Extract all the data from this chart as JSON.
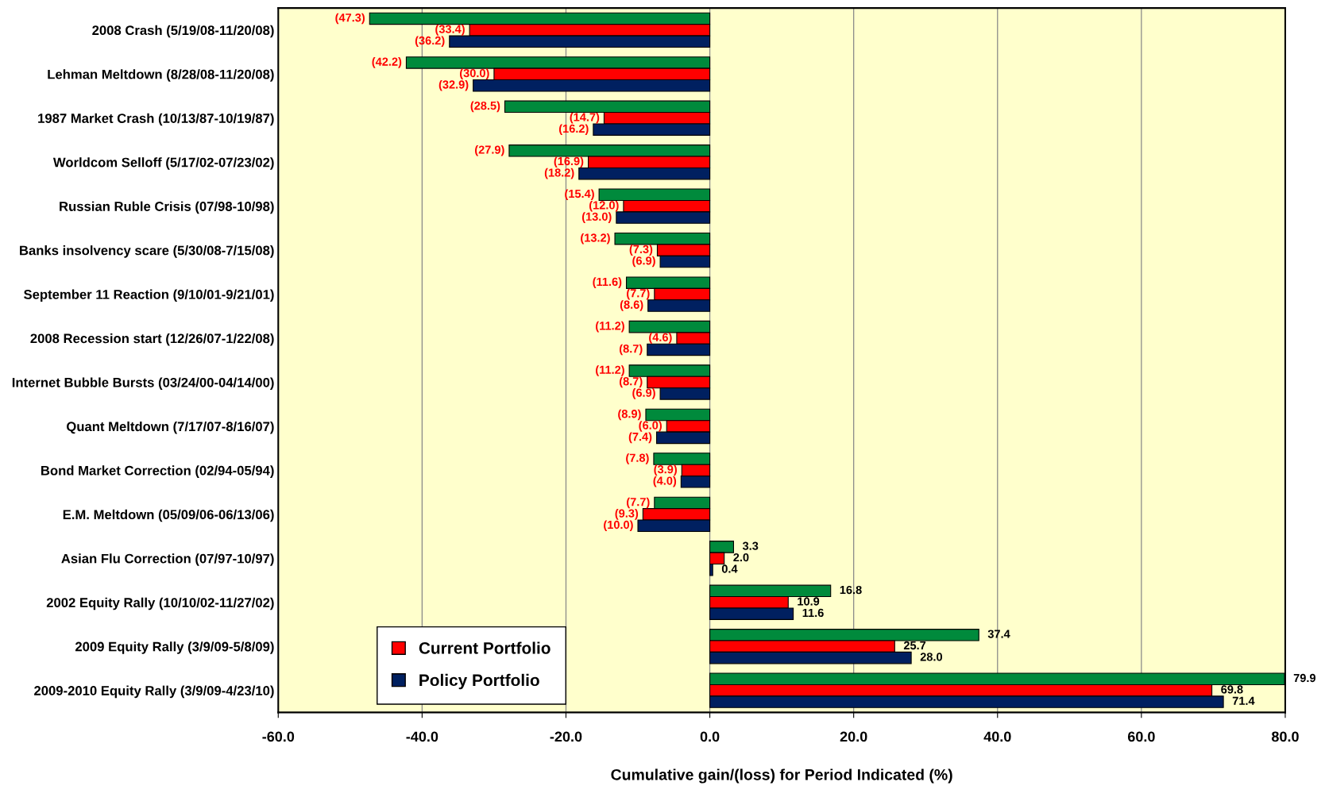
{
  "chart_data": {
    "type": "bar",
    "orientation": "horizontal",
    "xlabel": "Cumulative gain/(loss) for Period Indicated (%)",
    "categories": [
      "2008 Crash (5/19/08-11/20/08)",
      "Lehman Meltdown (8/28/08-11/20/08)",
      "1987 Market Crash (10/13/87-10/19/87)",
      "Worldcom Selloff (5/17/02-07/23/02)",
      "Russian Ruble Crisis (07/98-10/98)",
      "Banks insolvency scare (5/30/08-7/15/08)",
      "September 11 Reaction (9/10/01-9/21/01)",
      "2008 Recession start (12/26/07-1/22/08)",
      "Internet Bubble Bursts (03/24/00-04/14/00)",
      "Quant Meltdown (7/17/07-8/16/07)",
      "Bond Market Correction (02/94-05/94)",
      "E.M. Meltdown (05/09/06-06/13/06)",
      "Asian Flu Correction (07/97-10/97)",
      "2002 Equity Rally (10/10/02-11/27/02)",
      "2009 Equity Rally (3/9/09-5/8/09)",
      "2009-2010 Equity Rally (3/9/09-4/23/10)"
    ],
    "series": [
      {
        "color": "#008a3c",
        "values": [
          -47.3,
          -42.2,
          -28.5,
          -27.9,
          -15.4,
          -13.2,
          -11.6,
          -11.2,
          -11.2,
          -8.9,
          -7.8,
          -7.7,
          3.3,
          16.8,
          37.4,
          79.9
        ],
        "value_labels": [
          "(47.3)",
          "(42.2)",
          "(28.5)",
          "(27.9)",
          "(15.4)",
          "(13.2)",
          "(11.6)",
          "(11.2)",
          "(11.2)",
          "(8.9)",
          "(7.8)",
          "(7.7)",
          "3.3",
          "16.8",
          "37.4",
          "79.9"
        ]
      },
      {
        "name": "Current Portfolio",
        "color": "#ff0000",
        "values": [
          -33.4,
          -30.0,
          -14.7,
          -16.9,
          -12.0,
          -7.3,
          -7.7,
          -4.6,
          -8.7,
          -6.0,
          -3.9,
          -9.3,
          2.0,
          10.9,
          25.7,
          69.8
        ],
        "value_labels": [
          "(33.4)",
          "(30.0)",
          "(14.7)",
          "(16.9)",
          "(12.0)",
          "(7.3)",
          "(7.7)",
          "(4.6)",
          "(8.7)",
          "(6.0)",
          "(3.9)",
          "(9.3)",
          "2.0",
          "10.9",
          "25.7",
          "69.8"
        ]
      },
      {
        "name": "Policy Portfolio",
        "color": "#002060",
        "values": [
          -36.2,
          -32.9,
          -16.2,
          -18.2,
          -13.0,
          -6.9,
          -8.6,
          -8.7,
          -6.9,
          -7.4,
          -4.0,
          -10.0,
          0.4,
          11.6,
          28.0,
          71.4
        ],
        "value_labels": [
          "(36.2)",
          "(32.9)",
          "(16.2)",
          "(18.2)",
          "(13.0)",
          "(6.9)",
          "(8.6)",
          "(8.7)",
          "(6.9)",
          "(7.4)",
          "(4.0)",
          "(10.0)",
          "0.4",
          "11.6",
          "28.0",
          "71.4"
        ]
      }
    ],
    "xlim": [
      -60,
      80
    ],
    "xticks": [
      {
        "value": -60,
        "label": "-60.0"
      },
      {
        "value": -40,
        "label": "-40.0"
      },
      {
        "value": -20,
        "label": "-20.0"
      },
      {
        "value": 0,
        "label": "0.0"
      },
      {
        "value": 20,
        "label": "20.0"
      },
      {
        "value": 40,
        "label": "40.0"
      },
      {
        "value": 60,
        "label": "60.0"
      },
      {
        "value": 80,
        "label": "80.0"
      }
    ],
    "grid": "x",
    "legend": "bottom left"
  }
}
